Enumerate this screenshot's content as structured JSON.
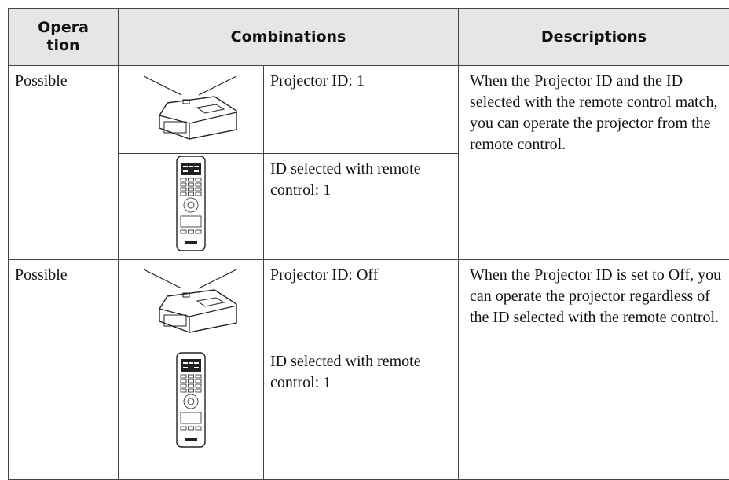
{
  "table": {
    "header": {
      "operation": [
        "Opera",
        "tion"
      ],
      "combinations": "Combinations",
      "descriptions": "Descriptions"
    },
    "rows": [
      {
        "operation": "Possible",
        "projector": "Projector ID: 1",
        "remote": "ID selected with remote control: 1",
        "description": "When the Projector ID and the ID selected with the remote control match, you can operate the projector from the remote control."
      },
      {
        "operation": "Possible",
        "projector": "Projector ID: Off",
        "remote": "ID selected with remote control: 1",
        "description": "When the Projector ID is set to Off, you can operate the projector regardless of the ID selected with the remote control."
      }
    ]
  }
}
